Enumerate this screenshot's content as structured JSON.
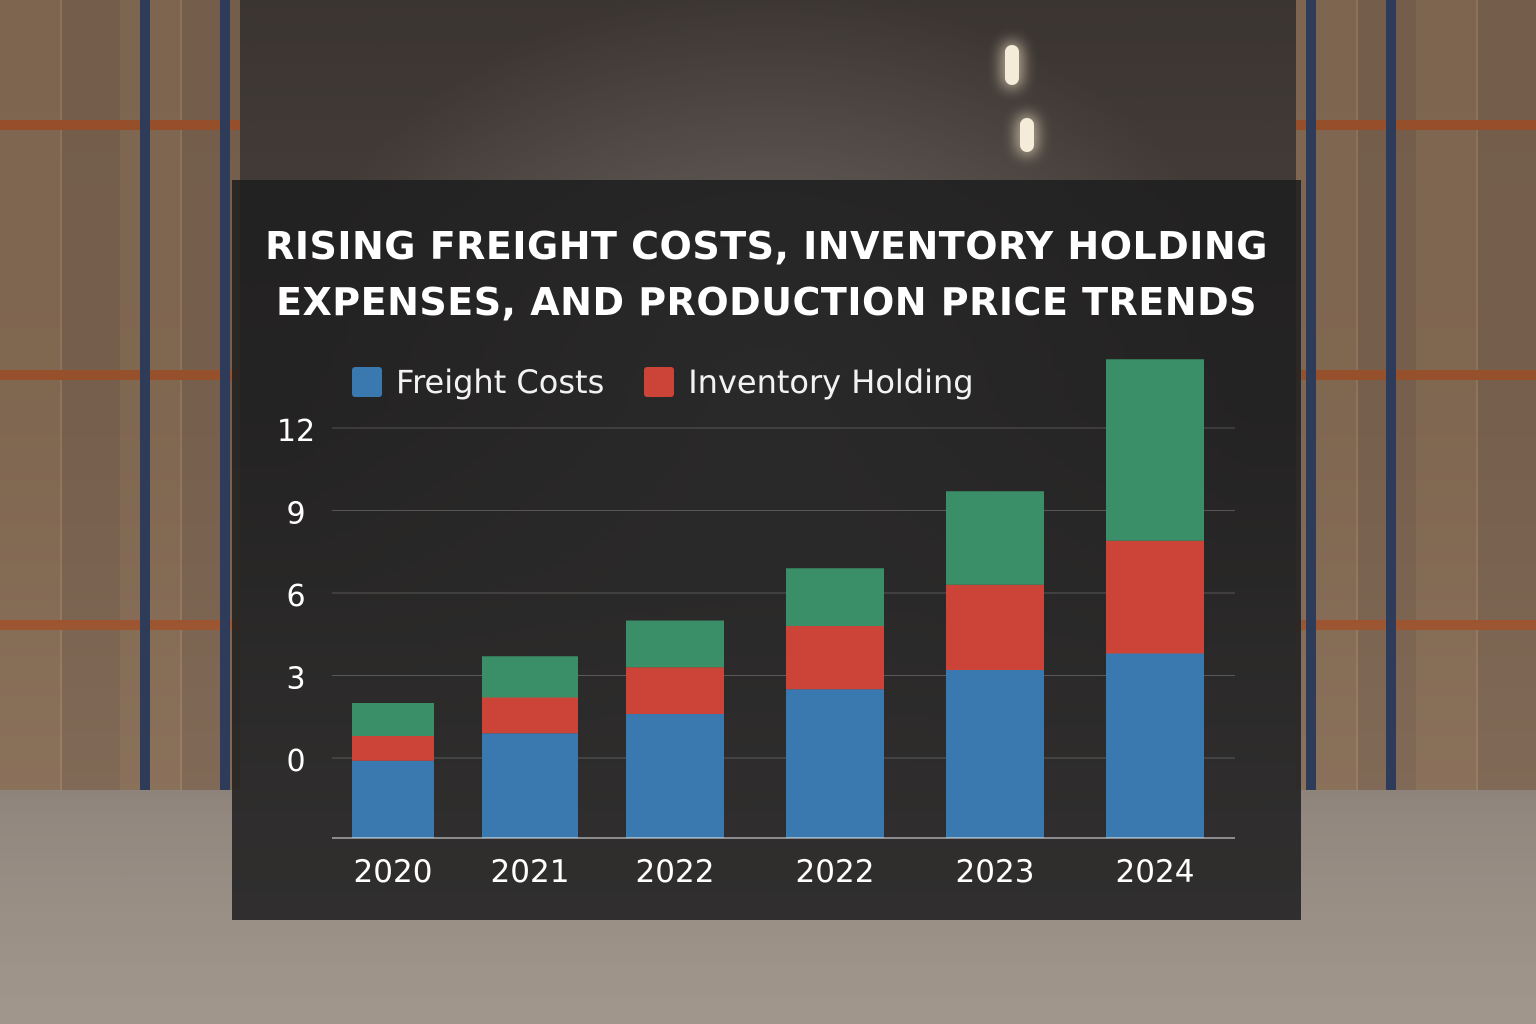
{
  "chart_data": {
    "type": "bar",
    "stacked": true,
    "title_lines": [
      "RISING FREIGHT COSTS, INVENTORY HOLDING",
      "EXPENSES, AND PRODUCTION PRICE TRENDS"
    ],
    "categories": [
      "2020",
      "2021",
      "2022",
      "2022",
      "2023",
      "2024"
    ],
    "series": [
      {
        "name": "Freight Costs",
        "color": "#3a78b0",
        "values": [
          -0.1,
          0.9,
          1.6,
          2.5,
          3.2,
          3.8
        ]
      },
      {
        "name": "Inventory Holding",
        "color": "#cc4438",
        "values": [
          0.9,
          1.3,
          1.7,
          2.3,
          3.1,
          4.1
        ]
      },
      {
        "color": "#3a8f68",
        "values": [
          1.2,
          1.5,
          1.7,
          2.1,
          3.4,
          6.6
        ]
      }
    ],
    "yticks": [
      "12",
      "9",
      "6",
      "3",
      "0"
    ],
    "grid": true,
    "legend": "top-left"
  }
}
